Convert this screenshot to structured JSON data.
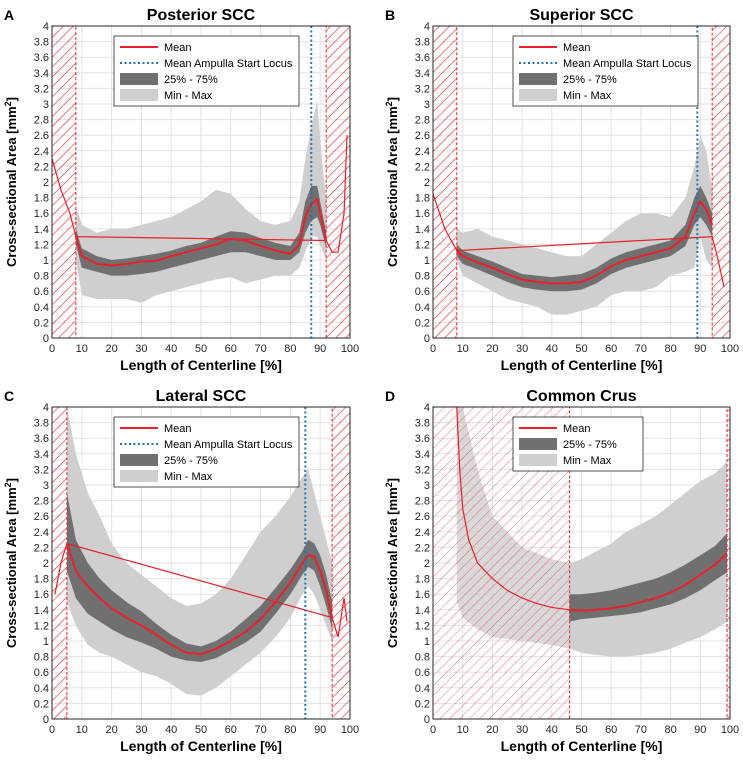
{
  "figure": {
    "colors": {
      "mean": "#e8202a",
      "ampulla": "#1f77b4",
      "iqr": "#707070",
      "minmax": "#cfcfcf",
      "hatch": "#e8202a",
      "grid": "#e3e3e3"
    }
  },
  "chart_data": [
    {
      "panel_label": "A",
      "title": "Posterior SCC",
      "type": "area",
      "xlabel": "Length of Centerline [%]",
      "ylabel_main": "Cross-sectional Area [mm",
      "ylabel_sup": "2",
      "ylabel_end": "]",
      "xlim": [
        0,
        100
      ],
      "ylim": [
        0,
        4
      ],
      "xticks": [
        0,
        10,
        20,
        30,
        40,
        50,
        60,
        70,
        80,
        90,
        100
      ],
      "yticks": [
        0,
        0.2,
        0.4,
        0.6,
        0.8,
        1,
        1.2,
        1.4,
        1.6,
        1.8,
        2,
        2.2,
        2.4,
        2.6,
        2.8,
        3,
        3.2,
        3.4,
        3.6,
        3.8,
        4
      ],
      "legend": [
        "Mean",
        "Mean Ampulla Start Locus",
        "25% - 75%",
        "Min - Max"
      ],
      "excluded_regions": [
        [
          0,
          8
        ],
        [
          92,
          100
        ]
      ],
      "ampulla_start_x": 87,
      "x": [
        8,
        10,
        15,
        20,
        25,
        30,
        35,
        40,
        45,
        50,
        55,
        60,
        65,
        70,
        75,
        80,
        83,
        85,
        87,
        89,
        90,
        92
      ],
      "mean": [
        1.3,
        1.05,
        0.95,
        0.93,
        0.95,
        0.98,
        0.99,
        1.05,
        1.1,
        1.15,
        1.2,
        1.27,
        1.25,
        1.18,
        1.12,
        1.08,
        1.2,
        1.55,
        1.72,
        1.78,
        1.6,
        1.25
      ],
      "q25": [
        1.2,
        0.9,
        0.85,
        0.8,
        0.8,
        0.82,
        0.85,
        0.9,
        0.95,
        1.0,
        1.05,
        1.1,
        1.1,
        1.05,
        1.0,
        1.0,
        1.1,
        1.35,
        1.5,
        1.55,
        1.45,
        1.15
      ],
      "q75": [
        1.4,
        1.15,
        1.05,
        1.0,
        1.02,
        1.05,
        1.08,
        1.12,
        1.18,
        1.22,
        1.3,
        1.37,
        1.35,
        1.28,
        1.22,
        1.18,
        1.35,
        1.75,
        1.95,
        1.95,
        1.75,
        1.35
      ],
      "min": [
        1.0,
        0.55,
        0.5,
        0.5,
        0.5,
        0.45,
        0.55,
        0.6,
        0.65,
        0.7,
        0.75,
        0.78,
        0.7,
        0.75,
        0.8,
        0.8,
        0.9,
        1.1,
        1.3,
        1.3,
        1.2,
        1.0
      ],
      "max": [
        1.7,
        1.45,
        1.35,
        1.4,
        1.4,
        1.45,
        1.5,
        1.55,
        1.65,
        1.75,
        1.9,
        1.85,
        1.65,
        1.5,
        1.45,
        1.5,
        1.75,
        2.3,
        2.7,
        3.05,
        2.55,
        1.75
      ],
      "outlier_x": [
        0,
        3,
        6,
        8,
        92,
        94,
        96,
        98,
        99
      ],
      "outlier_y": [
        2.3,
        1.9,
        1.6,
        1.3,
        1.25,
        1.1,
        1.1,
        1.6,
        2.6
      ]
    },
    {
      "panel_label": "B",
      "title": "Superior SCC",
      "type": "area",
      "xlabel": "Length of Centerline [%]",
      "ylabel_main": "Cross-sectional Area [mm",
      "ylabel_sup": "2",
      "ylabel_end": "]",
      "xlim": [
        0,
        100
      ],
      "ylim": [
        0,
        4
      ],
      "xticks": [
        0,
        10,
        20,
        30,
        40,
        50,
        60,
        70,
        80,
        90,
        100
      ],
      "yticks": [
        0,
        0.2,
        0.4,
        0.6,
        0.8,
        1,
        1.2,
        1.4,
        1.6,
        1.8,
        2,
        2.2,
        2.4,
        2.6,
        2.8,
        3,
        3.2,
        3.4,
        3.6,
        3.8,
        4
      ],
      "legend": [
        "Mean",
        "Mean Ampulla Start Locus",
        "25% - 75%",
        "Min - Max"
      ],
      "excluded_regions": [
        [
          0,
          8
        ],
        [
          94,
          100
        ]
      ],
      "ampulla_start_x": 89,
      "x": [
        8,
        10,
        15,
        20,
        25,
        30,
        35,
        40,
        45,
        50,
        55,
        60,
        65,
        70,
        75,
        80,
        85,
        88,
        90,
        92,
        94
      ],
      "mean": [
        1.12,
        1.05,
        0.97,
        0.9,
        0.82,
        0.75,
        0.72,
        0.7,
        0.7,
        0.72,
        0.8,
        0.92,
        1.0,
        1.05,
        1.1,
        1.15,
        1.3,
        1.6,
        1.75,
        1.65,
        1.45
      ],
      "q25": [
        1.05,
        0.95,
        0.88,
        0.8,
        0.72,
        0.65,
        0.62,
        0.6,
        0.6,
        0.62,
        0.7,
        0.82,
        0.9,
        0.95,
        1.0,
        1.05,
        1.18,
        1.45,
        1.55,
        1.45,
        1.3
      ],
      "q75": [
        1.2,
        1.12,
        1.05,
        0.98,
        0.9,
        0.82,
        0.8,
        0.78,
        0.8,
        0.82,
        0.9,
        1.02,
        1.1,
        1.15,
        1.2,
        1.25,
        1.45,
        1.8,
        1.95,
        1.8,
        1.6
      ],
      "min": [
        1.0,
        0.8,
        0.7,
        0.6,
        0.5,
        0.45,
        0.4,
        0.3,
        0.3,
        0.35,
        0.4,
        0.55,
        0.6,
        0.6,
        0.65,
        0.8,
        0.85,
        0.9,
        1.3,
        1.0,
        0.9
      ],
      "max": [
        1.4,
        1.35,
        1.4,
        1.3,
        1.25,
        1.2,
        1.15,
        1.1,
        1.05,
        1.05,
        1.2,
        1.35,
        1.5,
        1.6,
        1.6,
        1.55,
        1.8,
        2.2,
        2.6,
        2.4,
        1.9
      ],
      "outlier_x": [
        0,
        4,
        8,
        94,
        96,
        98
      ],
      "outlier_y": [
        1.85,
        1.4,
        1.12,
        1.3,
        1.0,
        0.65
      ]
    },
    {
      "panel_label": "C",
      "title": "Lateral SCC",
      "type": "area",
      "xlabel": "Length of Centerline [%]",
      "ylabel_main": "Cross-sectional Area [mm",
      "ylabel_sup": "2",
      "ylabel_end": "]",
      "xlim": [
        0,
        100
      ],
      "ylim": [
        0,
        4
      ],
      "xticks": [
        0,
        10,
        20,
        30,
        40,
        50,
        60,
        70,
        80,
        90,
        100
      ],
      "yticks": [
        0,
        0.2,
        0.4,
        0.6,
        0.8,
        1,
        1.2,
        1.4,
        1.6,
        1.8,
        2,
        2.2,
        2.4,
        2.6,
        2.8,
        3,
        3.2,
        3.4,
        3.6,
        3.8,
        4
      ],
      "legend": [
        "Mean",
        "Mean Ampulla Start Locus",
        "25% - 75%",
        "Min - Max"
      ],
      "excluded_regions": [
        [
          0,
          5
        ],
        [
          94,
          100
        ]
      ],
      "ampulla_start_x": 85,
      "x": [
        5,
        8,
        12,
        16,
        20,
        25,
        30,
        35,
        40,
        45,
        50,
        55,
        60,
        65,
        70,
        75,
        80,
        84,
        86,
        88,
        90,
        92,
        94
      ],
      "mean": [
        2.25,
        1.9,
        1.7,
        1.55,
        1.42,
        1.3,
        1.2,
        1.08,
        0.95,
        0.85,
        0.83,
        0.9,
        1.0,
        1.12,
        1.28,
        1.5,
        1.75,
        2.0,
        2.1,
        2.08,
        1.9,
        1.65,
        1.3
      ],
      "q25": [
        1.9,
        1.55,
        1.35,
        1.25,
        1.15,
        1.05,
        0.98,
        0.9,
        0.8,
        0.75,
        0.73,
        0.78,
        0.88,
        0.98,
        1.12,
        1.35,
        1.6,
        1.85,
        1.95,
        1.9,
        1.7,
        1.45,
        1.15
      ],
      "q75": [
        2.9,
        2.3,
        2.0,
        1.8,
        1.65,
        1.5,
        1.38,
        1.22,
        1.08,
        0.97,
        0.93,
        1.0,
        1.12,
        1.28,
        1.45,
        1.68,
        1.92,
        2.15,
        2.3,
        2.25,
        2.1,
        1.85,
        1.5
      ],
      "min": [
        1.5,
        1.2,
        0.95,
        0.85,
        0.8,
        0.7,
        0.6,
        0.55,
        0.45,
        0.32,
        0.3,
        0.4,
        0.55,
        0.7,
        0.85,
        1.05,
        1.3,
        1.6,
        1.7,
        1.6,
        1.4,
        1.2,
        1.0
      ],
      "max": [
        4.0,
        3.4,
        2.9,
        2.6,
        2.25,
        2.0,
        1.85,
        1.7,
        1.55,
        1.45,
        1.48,
        1.6,
        1.8,
        2.1,
        2.4,
        2.6,
        2.85,
        3.1,
        3.2,
        2.9,
        2.6,
        2.3,
        2.0
      ],
      "outlier_x": [
        1,
        3,
        5,
        94,
        96,
        98,
        99
      ],
      "outlier_y": [
        1.6,
        2.0,
        2.25,
        1.3,
        1.05,
        1.55,
        1.25
      ]
    },
    {
      "panel_label": "D",
      "title": "Common Crus",
      "type": "area",
      "xlabel": "Length of Centerline [%]",
      "ylabel_main": "Cross-sectional Area [mm",
      "ylabel_sup": "2",
      "ylabel_end": "]",
      "xlim": [
        0,
        100
      ],
      "ylim": [
        0,
        4
      ],
      "xticks": [
        0,
        10,
        20,
        30,
        40,
        50,
        60,
        70,
        80,
        90,
        100
      ],
      "yticks": [
        0,
        0.2,
        0.4,
        0.6,
        0.8,
        1,
        1.2,
        1.4,
        1.6,
        1.8,
        2,
        2.2,
        2.4,
        2.6,
        2.8,
        3,
        3.2,
        3.4,
        3.6,
        3.8,
        4
      ],
      "legend": [
        "Mean",
        "25% - 75%",
        "Min - Max"
      ],
      "excluded_regions": [
        [
          0,
          46
        ],
        [
          99,
          100
        ]
      ],
      "ampulla_start_x": null,
      "x": [
        46,
        50,
        55,
        60,
        65,
        70,
        75,
        80,
        85,
        90,
        95,
        99
      ],
      "mean": [
        1.4,
        1.39,
        1.4,
        1.42,
        1.45,
        1.5,
        1.55,
        1.62,
        1.72,
        1.85,
        1.98,
        2.12
      ],
      "q25": [
        1.25,
        1.28,
        1.3,
        1.32,
        1.34,
        1.37,
        1.42,
        1.47,
        1.55,
        1.65,
        1.78,
        1.88
      ],
      "q75": [
        1.6,
        1.6,
        1.62,
        1.65,
        1.7,
        1.75,
        1.8,
        1.88,
        1.98,
        2.1,
        2.22,
        2.38
      ],
      "min": [
        0.9,
        0.85,
        0.82,
        0.8,
        0.8,
        0.82,
        0.85,
        0.9,
        0.98,
        1.05,
        1.15,
        1.25
      ],
      "max": [
        2.0,
        2.05,
        2.15,
        2.25,
        2.4,
        2.5,
        2.6,
        2.75,
        2.9,
        3.05,
        3.15,
        3.3
      ],
      "outlier_x": [
        8,
        9,
        10,
        12,
        15,
        20,
        25,
        30,
        35,
        40,
        46
      ],
      "outlier_y": [
        4.0,
        3.2,
        2.7,
        2.3,
        2.0,
        1.8,
        1.65,
        1.55,
        1.48,
        1.43,
        1.4
      ],
      "outlier_min_x": [
        8,
        10,
        15,
        20,
        30,
        40,
        46
      ],
      "outlier_min": [
        1.5,
        1.3,
        1.15,
        1.05,
        1.0,
        0.95,
        0.9
      ],
      "outlier_max_x": [
        8,
        10,
        15,
        20,
        30,
        40,
        46
      ],
      "outlier_max": [
        4.0,
        4.0,
        3.2,
        2.6,
        2.2,
        2.05,
        2.0
      ]
    }
  ]
}
